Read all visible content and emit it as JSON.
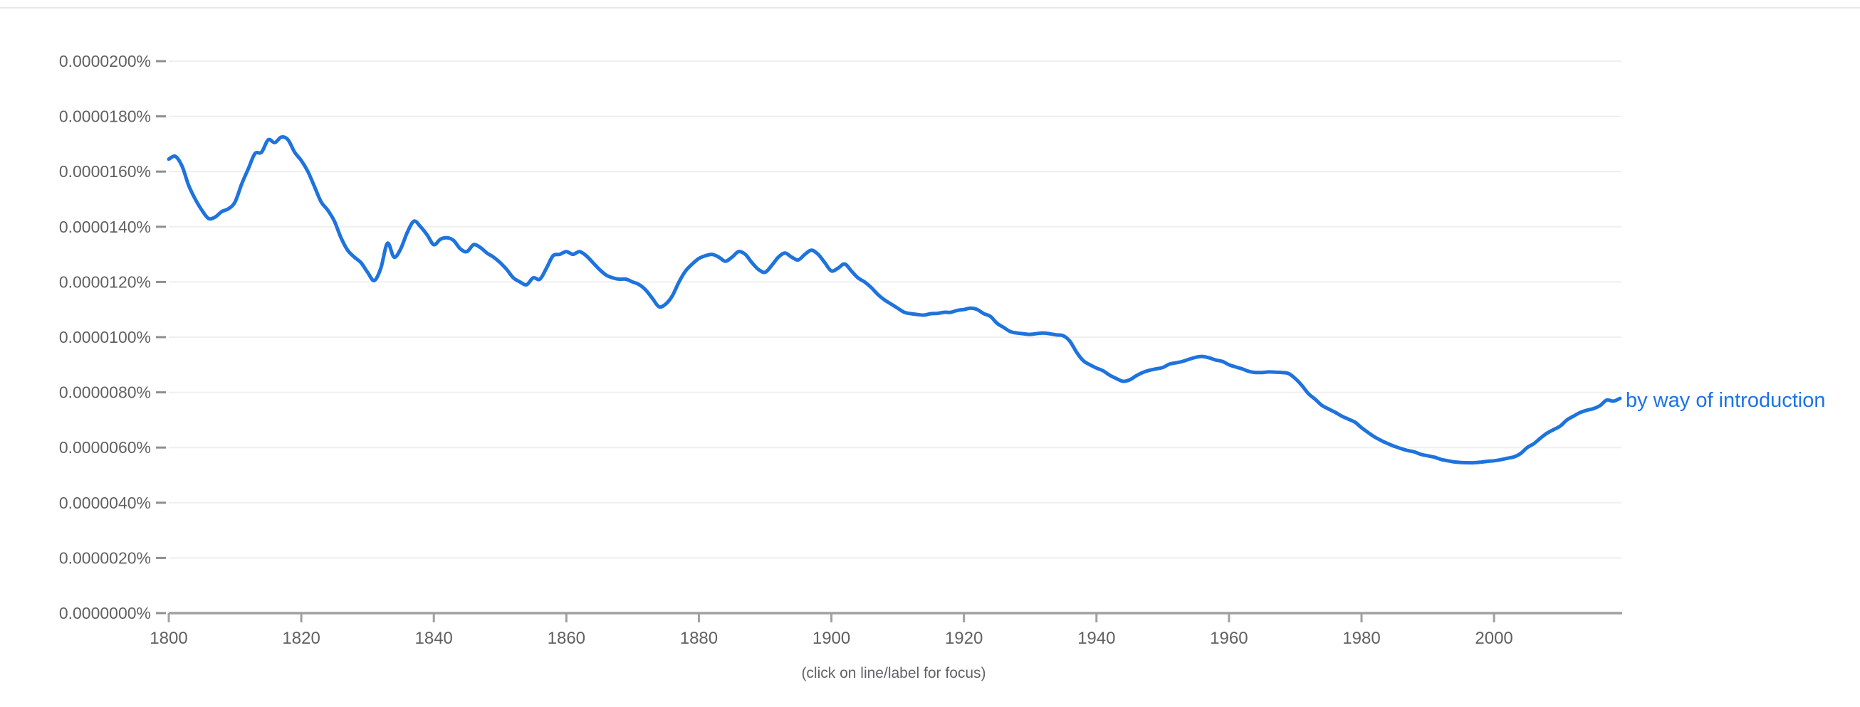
{
  "footer": {
    "hint": "(click on line/label for focus)"
  },
  "colors": {
    "line": "#1e73dd",
    "series_label": "#1a73e8",
    "gridline": "#efefef",
    "axis_line": "#a0a0a0",
    "tick_mark": "#8f8f8f",
    "tick_text": "#616161",
    "top_border": "#e7e7e7",
    "background": "#ffffff"
  },
  "axes": {
    "y_tick_labels": [
      "0.0000200%",
      "0.0000180%",
      "0.0000160%",
      "0.0000140%",
      "0.0000120%",
      "0.0000100%",
      "0.0000080%",
      "0.0000060%",
      "0.0000040%",
      "0.0000020%",
      "0.0000000%"
    ],
    "x_tick_labels": [
      "1800",
      "1820",
      "1840",
      "1860",
      "1880",
      "1900",
      "1920",
      "1940",
      "1960",
      "1980",
      "2000"
    ]
  },
  "chart_data": {
    "type": "line",
    "title": "",
    "xlabel": "",
    "ylabel": "",
    "grid": true,
    "legend_position": "end-of-line label",
    "xlim": [
      1800,
      2019
    ],
    "ylim_percent": [
      0,
      2e-05
    ],
    "x_years": {
      "start": 1800,
      "end": 2019,
      "step": 1
    },
    "series": [
      {
        "name": "by way of introduction",
        "y_scale_to_percent": 1e-05,
        "y": [
          1.645,
          1.655,
          1.62,
          1.55,
          1.5,
          1.46,
          1.43,
          1.435,
          1.455,
          1.465,
          1.49,
          1.555,
          1.61,
          1.665,
          1.67,
          1.715,
          1.705,
          1.725,
          1.715,
          1.67,
          1.64,
          1.6,
          1.545,
          1.49,
          1.46,
          1.42,
          1.36,
          1.315,
          1.29,
          1.27,
          1.235,
          1.205,
          1.25,
          1.34,
          1.29,
          1.32,
          1.38,
          1.42,
          1.4,
          1.37,
          1.335,
          1.355,
          1.36,
          1.35,
          1.32,
          1.31,
          1.335,
          1.325,
          1.305,
          1.29,
          1.27,
          1.245,
          1.215,
          1.2,
          1.19,
          1.215,
          1.21,
          1.25,
          1.295,
          1.3,
          1.31,
          1.3,
          1.31,
          1.295,
          1.27,
          1.245,
          1.225,
          1.215,
          1.21,
          1.21,
          1.2,
          1.19,
          1.17,
          1.14,
          1.11,
          1.12,
          1.15,
          1.2,
          1.24,
          1.265,
          1.285,
          1.295,
          1.3,
          1.29,
          1.275,
          1.29,
          1.31,
          1.3,
          1.27,
          1.245,
          1.235,
          1.26,
          1.29,
          1.305,
          1.29,
          1.28,
          1.3,
          1.315,
          1.3,
          1.27,
          1.24,
          1.25,
          1.265,
          1.24,
          1.215,
          1.2,
          1.18,
          1.155,
          1.135,
          1.12,
          1.105,
          1.09,
          1.085,
          1.082,
          1.08,
          1.085,
          1.086,
          1.09,
          1.09,
          1.097,
          1.1,
          1.105,
          1.1,
          1.085,
          1.075,
          1.05,
          1.035,
          1.02,
          1.015,
          1.012,
          1.01,
          1.013,
          1.015,
          1.012,
          1.008,
          1.005,
          0.985,
          0.945,
          0.915,
          0.9,
          0.888,
          0.878,
          0.862,
          0.85,
          0.84,
          0.845,
          0.86,
          0.872,
          0.88,
          0.885,
          0.89,
          0.902,
          0.907,
          0.912,
          0.92,
          0.927,
          0.93,
          0.925,
          0.917,
          0.912,
          0.9,
          0.892,
          0.885,
          0.876,
          0.872,
          0.872,
          0.874,
          0.873,
          0.872,
          0.868,
          0.85,
          0.825,
          0.795,
          0.775,
          0.753,
          0.74,
          0.728,
          0.714,
          0.703,
          0.692,
          0.672,
          0.654,
          0.638,
          0.625,
          0.614,
          0.604,
          0.596,
          0.589,
          0.584,
          0.575,
          0.57,
          0.565,
          0.557,
          0.552,
          0.548,
          0.546,
          0.545,
          0.545,
          0.547,
          0.55,
          0.552,
          0.556,
          0.561,
          0.566,
          0.578,
          0.6,
          0.614,
          0.634,
          0.652,
          0.665,
          0.678,
          0.7,
          0.714,
          0.727,
          0.735,
          0.741,
          0.752,
          0.772,
          0.768,
          0.778
        ]
      }
    ]
  }
}
